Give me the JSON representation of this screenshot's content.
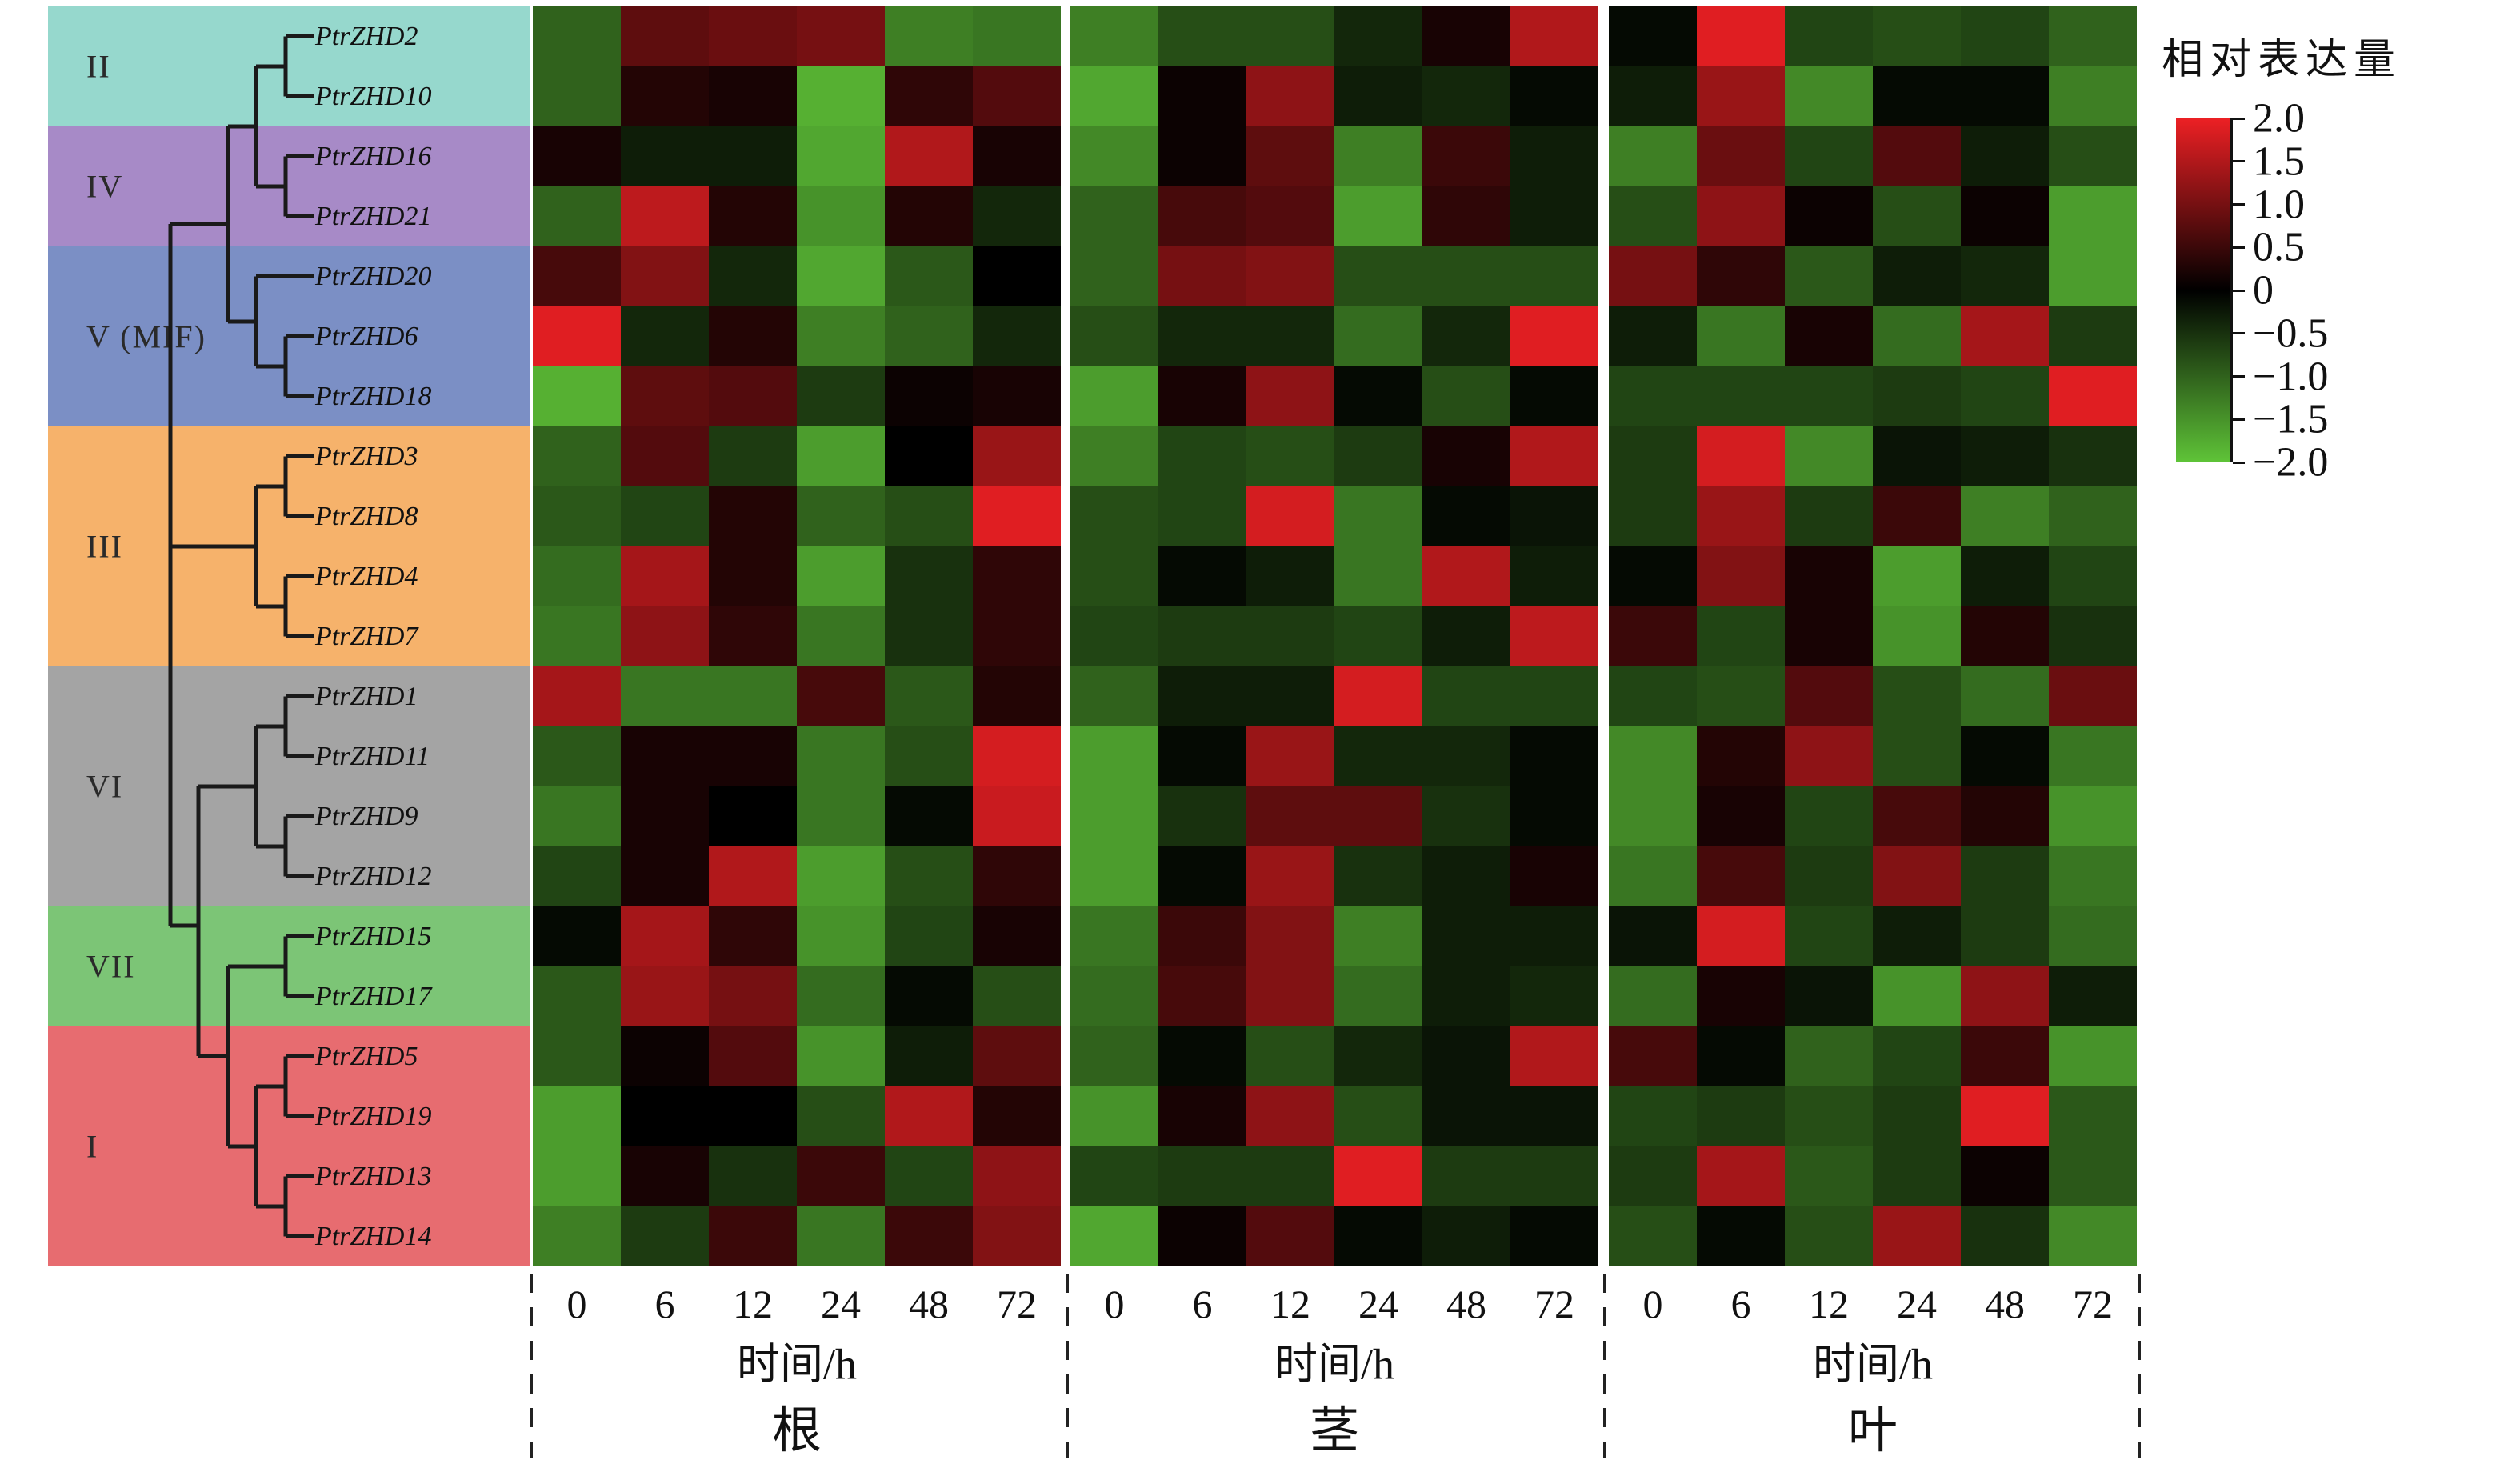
{
  "legend": {
    "title": "相对表达量",
    "ticks": [
      "2.0",
      "1.5",
      "1.0",
      "0.5",
      "0",
      "−0.5",
      "−1.0",
      "−1.5",
      "−2.0"
    ],
    "colors": {
      "max": "#ec2024",
      "mid": "#000000",
      "min": "#5fc438"
    }
  },
  "axis": {
    "time_label": "时间/h",
    "time_ticks": [
      "0",
      "6",
      "12",
      "24",
      "48",
      "72"
    ]
  },
  "dendrogram": {
    "groups": [
      {
        "label": "II",
        "start_row": 0,
        "row_count": 2,
        "color": "#96d8cd"
      },
      {
        "label": "IV",
        "start_row": 2,
        "row_count": 2,
        "color": "#a78ac7"
      },
      {
        "label": "V (MIF)",
        "start_row": 4,
        "row_count": 3,
        "color": "#7b8fc5"
      },
      {
        "label": "III",
        "start_row": 7,
        "row_count": 4,
        "color": "#f6b26b"
      },
      {
        "label": "VI",
        "start_row": 11,
        "row_count": 4,
        "color": "#a4a4a4"
      },
      {
        "label": "VII",
        "start_row": 15,
        "row_count": 2,
        "color": "#7cc576"
      },
      {
        "label": "I",
        "start_row": 17,
        "row_count": 4,
        "color": "#e76c70"
      }
    ]
  },
  "chart_data": {
    "type": "heatmap",
    "value_label": "相对表达量",
    "value_range": [
      -2,
      2
    ],
    "colormap": {
      "positive_max": "#ec2024",
      "zero": "#000000",
      "negative_max": "#5fc438"
    },
    "rows": [
      "PtrZHD2",
      "PtrZHD10",
      "PtrZHD16",
      "PtrZHD21",
      "PtrZHD20",
      "PtrZHD6",
      "PtrZHD18",
      "PtrZHD3",
      "PtrZHD8",
      "PtrZHD4",
      "PtrZHD7",
      "PtrZHD1",
      "PtrZHD11",
      "PtrZHD9",
      "PtrZHD12",
      "PtrZHD15",
      "PtrZHD17",
      "PtrZHD5",
      "PtrZHD19",
      "PtrZHD13",
      "PtrZHD14"
    ],
    "columns_time_h": [
      0,
      6,
      12,
      24,
      48,
      72
    ],
    "series": [
      {
        "tissue": "根",
        "values": [
          [
            -1.0,
            0.8,
            0.9,
            1.0,
            -1.3,
            -1.2
          ],
          [
            -1.0,
            0.3,
            0.2,
            -1.8,
            0.4,
            0.7
          ],
          [
            0.2,
            -0.3,
            -0.3,
            -1.7,
            1.5,
            0.2
          ],
          [
            -1.0,
            1.6,
            0.3,
            -1.5,
            0.3,
            -0.4
          ],
          [
            0.6,
            1.1,
            -0.4,
            -1.7,
            -0.9,
            0.0
          ],
          [
            1.9,
            -0.4,
            0.3,
            -1.3,
            -1.0,
            -0.4
          ],
          [
            -1.8,
            0.8,
            0.7,
            -0.6,
            0.1,
            0.2
          ],
          [
            -1.0,
            0.7,
            -0.6,
            -1.6,
            0.0,
            1.3
          ],
          [
            -0.9,
            -0.7,
            0.3,
            -1.0,
            -0.8,
            1.9
          ],
          [
            -1.1,
            1.4,
            0.3,
            -1.6,
            -0.5,
            0.4
          ],
          [
            -1.2,
            1.2,
            0.4,
            -1.2,
            -0.5,
            0.4
          ],
          [
            1.4,
            -1.2,
            -1.2,
            0.6,
            -0.9,
            0.3
          ],
          [
            -0.9,
            0.2,
            0.2,
            -1.2,
            -0.8,
            1.8
          ],
          [
            -1.2,
            0.2,
            0.0,
            -1.2,
            -0.1,
            1.7
          ],
          [
            -0.7,
            0.2,
            1.5,
            -1.6,
            -0.8,
            0.4
          ],
          [
            -0.1,
            1.4,
            0.4,
            -1.5,
            -0.7,
            0.2
          ],
          [
            -0.9,
            1.3,
            1.0,
            -1.1,
            -0.1,
            -0.8
          ],
          [
            -0.9,
            0.1,
            0.7,
            -1.5,
            -0.3,
            0.8
          ],
          [
            -1.6,
            0.0,
            0.0,
            -0.8,
            1.5,
            0.3
          ],
          [
            -1.6,
            0.2,
            -0.5,
            0.5,
            -0.7,
            1.2
          ],
          [
            -1.3,
            -0.6,
            0.5,
            -1.2,
            0.5,
            1.1
          ]
        ]
      },
      {
        "tissue": "茎",
        "values": [
          [
            -1.3,
            -0.8,
            -0.8,
            -0.4,
            0.2,
            1.5
          ],
          [
            -1.7,
            0.1,
            1.2,
            -0.3,
            -0.4,
            -0.1
          ],
          [
            -1.4,
            0.1,
            0.8,
            -1.3,
            0.5,
            -0.3
          ],
          [
            -1.0,
            0.6,
            0.7,
            -1.6,
            0.4,
            -0.3
          ],
          [
            -1.0,
            1.0,
            1.1,
            -0.8,
            -0.8,
            -0.8
          ],
          [
            -0.8,
            -0.4,
            -0.4,
            -1.1,
            -0.4,
            1.9
          ],
          [
            -1.6,
            0.2,
            1.2,
            -0.1,
            -0.8,
            -0.1
          ],
          [
            -1.3,
            -0.7,
            -0.8,
            -0.6,
            0.2,
            1.5
          ],
          [
            -0.8,
            -0.7,
            1.8,
            -1.2,
            -0.1,
            -0.2
          ],
          [
            -0.8,
            -0.1,
            -0.3,
            -1.2,
            1.5,
            -0.3
          ],
          [
            -0.7,
            -0.6,
            -0.6,
            -0.7,
            -0.3,
            1.6
          ],
          [
            -1.0,
            -0.3,
            -0.3,
            1.8,
            -0.7,
            -0.7
          ],
          [
            -1.6,
            -0.1,
            1.3,
            -0.4,
            -0.4,
            -0.1
          ],
          [
            -1.6,
            -0.5,
            0.8,
            0.8,
            -0.5,
            -0.1
          ],
          [
            -1.6,
            -0.1,
            1.3,
            -0.5,
            -0.3,
            0.2
          ],
          [
            -1.2,
            0.5,
            1.1,
            -1.3,
            -0.3,
            -0.3
          ],
          [
            -1.1,
            0.6,
            1.1,
            -1.1,
            -0.3,
            -0.4
          ],
          [
            -1.0,
            -0.1,
            -0.8,
            -0.4,
            -0.2,
            1.5
          ],
          [
            -1.5,
            0.2,
            1.2,
            -0.8,
            -0.2,
            -0.2
          ],
          [
            -0.7,
            -0.6,
            -0.6,
            1.9,
            -0.6,
            -0.6
          ],
          [
            -1.7,
            0.1,
            0.7,
            -0.1,
            -0.3,
            -0.1
          ]
        ]
      },
      {
        "tissue": "叶",
        "values": [
          [
            -0.1,
            1.9,
            -0.7,
            -0.8,
            -0.7,
            -1.0
          ],
          [
            -0.3,
            1.3,
            -1.4,
            -0.1,
            -0.1,
            -1.3
          ],
          [
            -1.3,
            0.9,
            -0.7,
            0.7,
            -0.3,
            -0.8
          ],
          [
            -0.8,
            1.2,
            0.1,
            -0.8,
            0.1,
            -1.6
          ],
          [
            1.0,
            0.4,
            -0.9,
            -0.3,
            -0.4,
            -1.6
          ],
          [
            -0.3,
            -1.2,
            0.2,
            -1.1,
            1.4,
            -0.6
          ],
          [
            -0.7,
            -0.7,
            -0.7,
            -0.6,
            -0.7,
            1.9
          ],
          [
            -0.6,
            1.8,
            -1.4,
            -0.2,
            -0.3,
            -0.5
          ],
          [
            -0.6,
            1.3,
            -0.6,
            0.5,
            -1.3,
            -1.0
          ],
          [
            -0.1,
            1.1,
            0.2,
            -1.6,
            -0.3,
            -0.7
          ],
          [
            0.5,
            -0.7,
            0.2,
            -1.5,
            0.3,
            -0.5
          ],
          [
            -0.7,
            -0.8,
            0.7,
            -0.8,
            -1.1,
            0.9
          ],
          [
            -1.4,
            0.3,
            1.2,
            -0.8,
            -0.1,
            -1.2
          ],
          [
            -1.4,
            0.2,
            -0.7,
            0.6,
            0.3,
            -1.5
          ],
          [
            -1.2,
            0.6,
            -0.6,
            1.1,
            -0.6,
            -1.2
          ],
          [
            -0.2,
            1.8,
            -0.7,
            -0.3,
            -0.6,
            -1.1
          ],
          [
            -1.1,
            0.2,
            -0.2,
            -1.5,
            1.2,
            -0.3
          ],
          [
            0.6,
            -0.1,
            -1.0,
            -0.7,
            0.5,
            -1.5
          ],
          [
            -0.7,
            -0.6,
            -0.8,
            -0.6,
            1.9,
            -0.9
          ],
          [
            -0.6,
            1.4,
            -0.9,
            -0.6,
            0.1,
            -0.9
          ],
          [
            -0.8,
            -0.1,
            -0.8,
            1.3,
            -0.5,
            -1.4
          ]
        ]
      }
    ]
  }
}
